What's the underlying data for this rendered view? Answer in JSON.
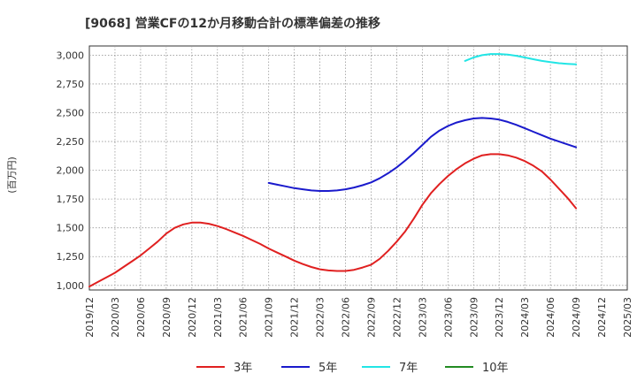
{
  "chart_data": {
    "type": "line",
    "title": "[9068]  営業CFの12か月移動合計の標準偏差の推移",
    "ylabel": "(百万円)",
    "xlabel": "",
    "ylim": [
      960,
      3080
    ],
    "y_ticks": [
      1000,
      1250,
      1500,
      1750,
      2000,
      2250,
      2500,
      2750,
      3000
    ],
    "y_tick_labels": [
      "1,000",
      "1,250",
      "1,500",
      "1,750",
      "2,000",
      "2,250",
      "2,500",
      "2,750",
      "3,000"
    ],
    "x_ticks": [
      "2019/12",
      "2020/03",
      "2020/06",
      "2020/09",
      "2020/12",
      "2021/03",
      "2021/06",
      "2021/09",
      "2021/12",
      "2022/03",
      "2022/06",
      "2022/09",
      "2022/12",
      "2023/03",
      "2023/06",
      "2023/09",
      "2023/12",
      "2024/03",
      "2024/06",
      "2024/09",
      "2024/12",
      "2025/03"
    ],
    "grid": true,
    "legend_position": "bottom",
    "series": [
      {
        "name": "3年",
        "color": "#e02020",
        "x": [
          "2019/12",
          "2020/01",
          "2020/02",
          "2020/03",
          "2020/04",
          "2020/05",
          "2020/06",
          "2020/07",
          "2020/08",
          "2020/09",
          "2020/10",
          "2020/11",
          "2020/12",
          "2021/01",
          "2021/02",
          "2021/03",
          "2021/04",
          "2021/05",
          "2021/06",
          "2021/07",
          "2021/08",
          "2021/09",
          "2021/10",
          "2021/11",
          "2021/12",
          "2022/01",
          "2022/02",
          "2022/03",
          "2022/04",
          "2022/05",
          "2022/06",
          "2022/07",
          "2022/08",
          "2022/09",
          "2022/10",
          "2022/11",
          "2022/12",
          "2023/01",
          "2023/02",
          "2023/03",
          "2023/04",
          "2023/05",
          "2023/06",
          "2023/07",
          "2023/08",
          "2023/09",
          "2023/10",
          "2023/11",
          "2023/12",
          "2024/01",
          "2024/02",
          "2024/03",
          "2024/04",
          "2024/05",
          "2024/06",
          "2024/07",
          "2024/08",
          "2024/09"
        ],
        "values": [
          990,
          1030,
          1070,
          1110,
          1160,
          1210,
          1260,
          1320,
          1380,
          1450,
          1500,
          1530,
          1545,
          1545,
          1535,
          1515,
          1490,
          1460,
          1430,
          1395,
          1360,
          1320,
          1285,
          1250,
          1215,
          1185,
          1160,
          1140,
          1130,
          1125,
          1125,
          1135,
          1155,
          1180,
          1230,
          1300,
          1380,
          1470,
          1580,
          1700,
          1800,
          1880,
          1950,
          2010,
          2060,
          2100,
          2130,
          2140,
          2140,
          2130,
          2110,
          2080,
          2040,
          1990,
          1920,
          1840,
          1760,
          1670
        ]
      },
      {
        "name": "5年",
        "color": "#1a1acc",
        "x": [
          "2021/09",
          "2021/10",
          "2021/11",
          "2021/12",
          "2022/01",
          "2022/02",
          "2022/03",
          "2022/04",
          "2022/05",
          "2022/06",
          "2022/07",
          "2022/08",
          "2022/09",
          "2022/10",
          "2022/11",
          "2022/12",
          "2023/01",
          "2023/02",
          "2023/03",
          "2023/04",
          "2023/05",
          "2023/06",
          "2023/07",
          "2023/08",
          "2023/09",
          "2023/10",
          "2023/11",
          "2023/12",
          "2024/01",
          "2024/02",
          "2024/03",
          "2024/04",
          "2024/05",
          "2024/06",
          "2024/07",
          "2024/08",
          "2024/09"
        ],
        "values": [
          1890,
          1875,
          1860,
          1845,
          1835,
          1825,
          1820,
          1820,
          1825,
          1835,
          1850,
          1870,
          1895,
          1930,
          1975,
          2025,
          2085,
          2150,
          2220,
          2290,
          2345,
          2385,
          2415,
          2435,
          2450,
          2455,
          2450,
          2440,
          2420,
          2395,
          2365,
          2335,
          2305,
          2275,
          2250,
          2225,
          2200
        ]
      },
      {
        "name": "7年",
        "color": "#22e5e5",
        "x": [
          "2023/08",
          "2023/09",
          "2023/10",
          "2023/11",
          "2023/12",
          "2024/01",
          "2024/02",
          "2024/03",
          "2024/04",
          "2024/05",
          "2024/06",
          "2024/07",
          "2024/08",
          "2024/09"
        ],
        "values": [
          2950,
          2980,
          3000,
          3010,
          3010,
          3005,
          2995,
          2980,
          2965,
          2950,
          2940,
          2930,
          2925,
          2920
        ]
      },
      {
        "name": "10年",
        "color": "#228b22",
        "x": [],
        "values": []
      }
    ]
  }
}
